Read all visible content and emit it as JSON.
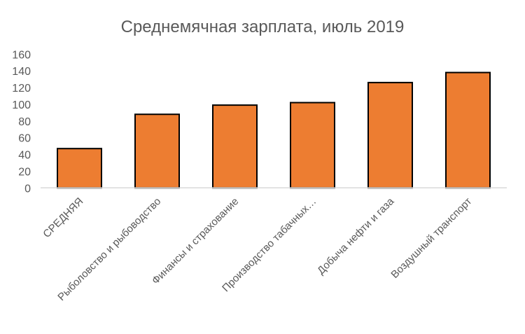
{
  "chart_data": {
    "type": "bar",
    "title": "Среднемячная зарплата, июль 2019",
    "categories": [
      "СРЕДНЯЯ",
      "Рыболовство и рыбоводство",
      "Финансы и страхование",
      "Производство табачных…",
      "Добыча нефти и газа",
      "Воздушный транспорт"
    ],
    "values": [
      47,
      88,
      99,
      102,
      126,
      138
    ],
    "ylim": [
      0,
      160
    ],
    "yticks": [
      0,
      20,
      40,
      60,
      80,
      100,
      120,
      140,
      160
    ],
    "xlabel": "",
    "ylabel": "",
    "grid": false,
    "legend": "none",
    "colors": {
      "bar": "#ED7D31",
      "bar_border": "#000000",
      "axis": "#D9D9D9",
      "text": "#595959"
    }
  }
}
